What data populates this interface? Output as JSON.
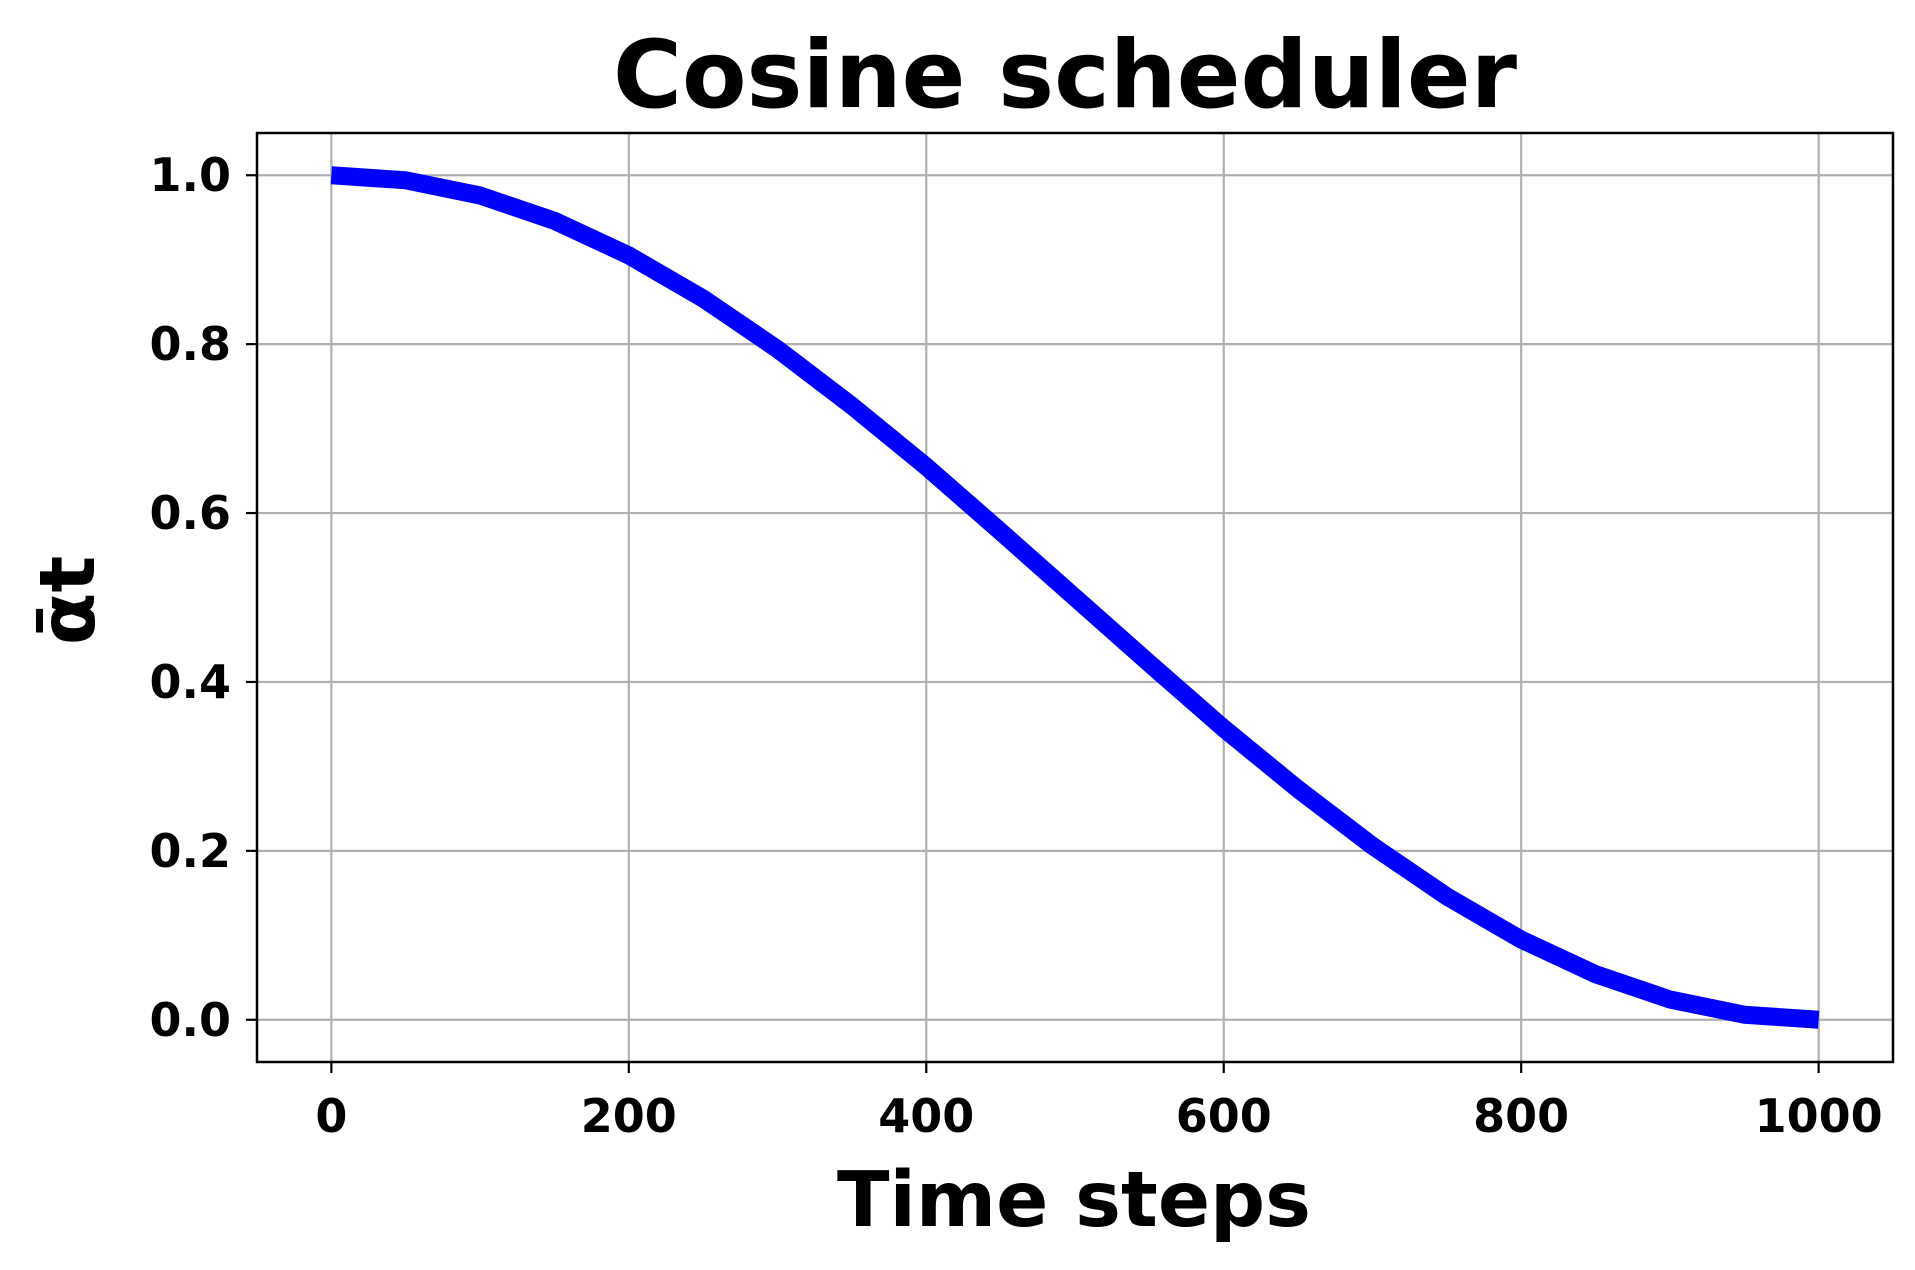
{
  "chart_data": {
    "type": "line",
    "title": "Cosine scheduler",
    "xlabel": "Time steps",
    "ylabel": "ᾱt",
    "xlim": [
      -50,
      1050
    ],
    "ylim": [
      -0.05,
      1.05
    ],
    "x_ticks": [
      0,
      200,
      400,
      600,
      800,
      1000
    ],
    "y_ticks": [
      0.0,
      0.2,
      0.4,
      0.6,
      0.8,
      1.0
    ],
    "x_tick_labels": [
      "0",
      "200",
      "400",
      "600",
      "800",
      "1000"
    ],
    "y_tick_labels": [
      "0.0",
      "0.2",
      "0.4",
      "0.6",
      "0.8",
      "1.0"
    ],
    "grid": true,
    "legend": "none",
    "series": [
      {
        "color": "#0000ff",
        "x": [
          0,
          50,
          100,
          150,
          200,
          250,
          300,
          350,
          400,
          450,
          500,
          550,
          600,
          650,
          700,
          750,
          800,
          850,
          900,
          950,
          1000
        ],
        "y": [
          1.0,
          0.994,
          0.976,
          0.946,
          0.905,
          0.854,
          0.794,
          0.727,
          0.655,
          0.578,
          0.5,
          0.422,
          0.345,
          0.273,
          0.206,
          0.146,
          0.095,
          0.054,
          0.024,
          0.006,
          0.0
        ]
      }
    ]
  }
}
